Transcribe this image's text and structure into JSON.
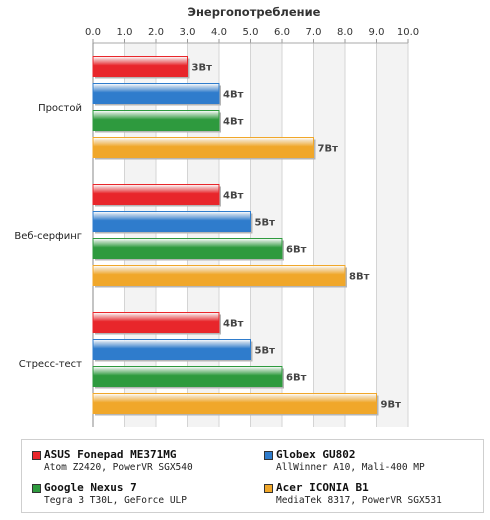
{
  "chart_data": {
    "type": "bar",
    "orientation": "horizontal",
    "title": "Энергопотребление",
    "xlim": [
      0,
      10
    ],
    "x_ticks": [
      "0.0",
      "1.0",
      "2.0",
      "3.0",
      "4.0",
      "5.0",
      "6.0",
      "7.0",
      "8.0",
      "9.0",
      "10.0"
    ],
    "categories": [
      "Простой",
      "Веб-серфинг",
      "Стресс-тест"
    ],
    "unit": "Вт",
    "grid": true,
    "legend_position": "bottom",
    "series": [
      {
        "name": "ASUS Fonepad ME371MG",
        "subtitle": "Atom Z2420, PowerVR SGX540",
        "color": "#e8262b",
        "values": [
          3,
          4,
          4
        ]
      },
      {
        "name": "Globex GU802",
        "subtitle": "AllWinner A10, Mali-400 MP",
        "color": "#2f7ccc",
        "values": [
          4,
          5,
          5
        ]
      },
      {
        "name": "Google Nexus 7",
        "subtitle": "Tegra 3 T30L, GeForce ULP",
        "color": "#2e9a3e",
        "values": [
          4,
          6,
          6
        ]
      },
      {
        "name": "Acer ICONIA B1",
        "subtitle": "MediaTek 8317, PowerVR SGX531",
        "color": "#f0a72a",
        "values": [
          7,
          8,
          9
        ]
      }
    ]
  }
}
